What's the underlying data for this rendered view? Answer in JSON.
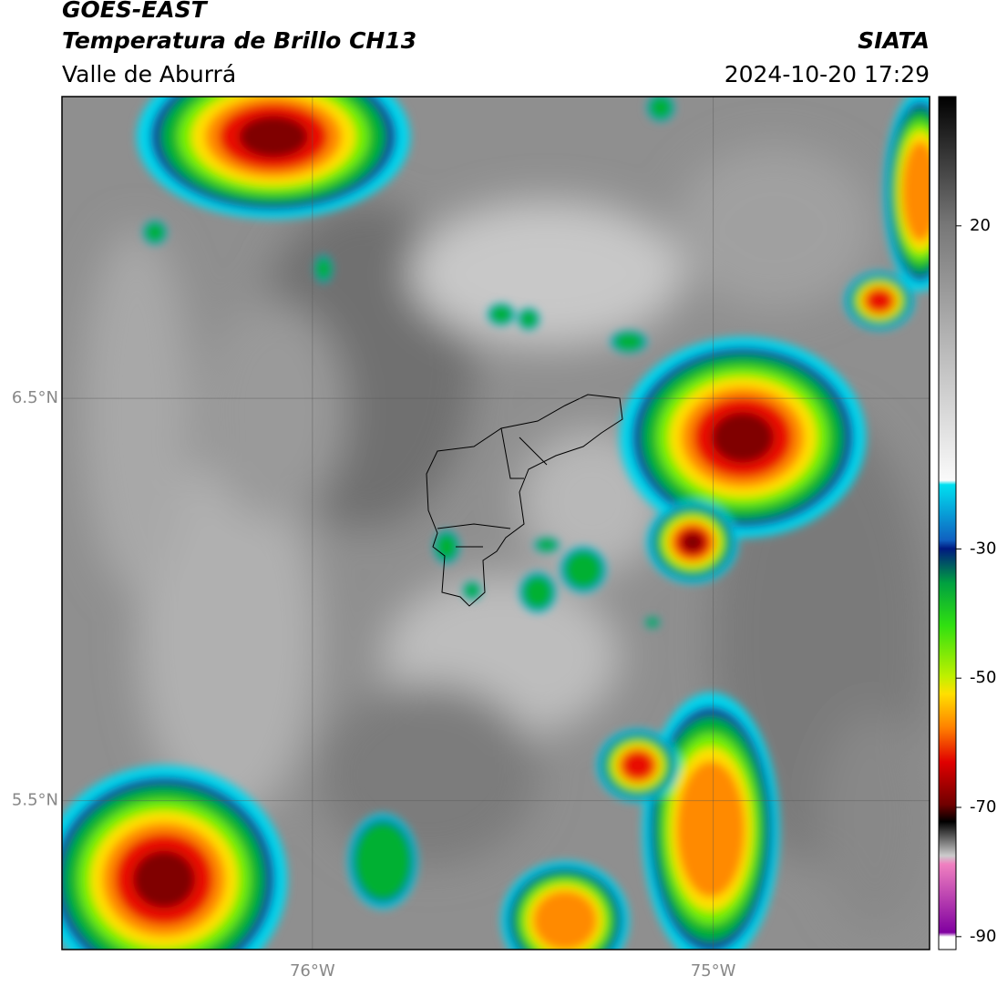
{
  "chart_data": {
    "type": "map",
    "title": "GOES-EAST",
    "subtitle": "Temperatura de Brillo CH13",
    "region": "Valle de Aburrá",
    "source": "SIATA",
    "timestamp": "2024-10-20 17:29",
    "xlim": [
      -76.625,
      -74.46
    ],
    "ylim": [
      5.13,
      7.25
    ],
    "xticks": [
      {
        "value": -76,
        "label": "76°W"
      },
      {
        "value": -75,
        "label": "75°W"
      }
    ],
    "yticks": [
      {
        "value": 6.5,
        "label": "6.5°N"
      },
      {
        "value": 5.5,
        "label": "5.5°N"
      }
    ],
    "clim": [
      -92,
      40
    ],
    "cticks": [
      20,
      -30,
      -50,
      -70,
      -90
    ]
  }
}
